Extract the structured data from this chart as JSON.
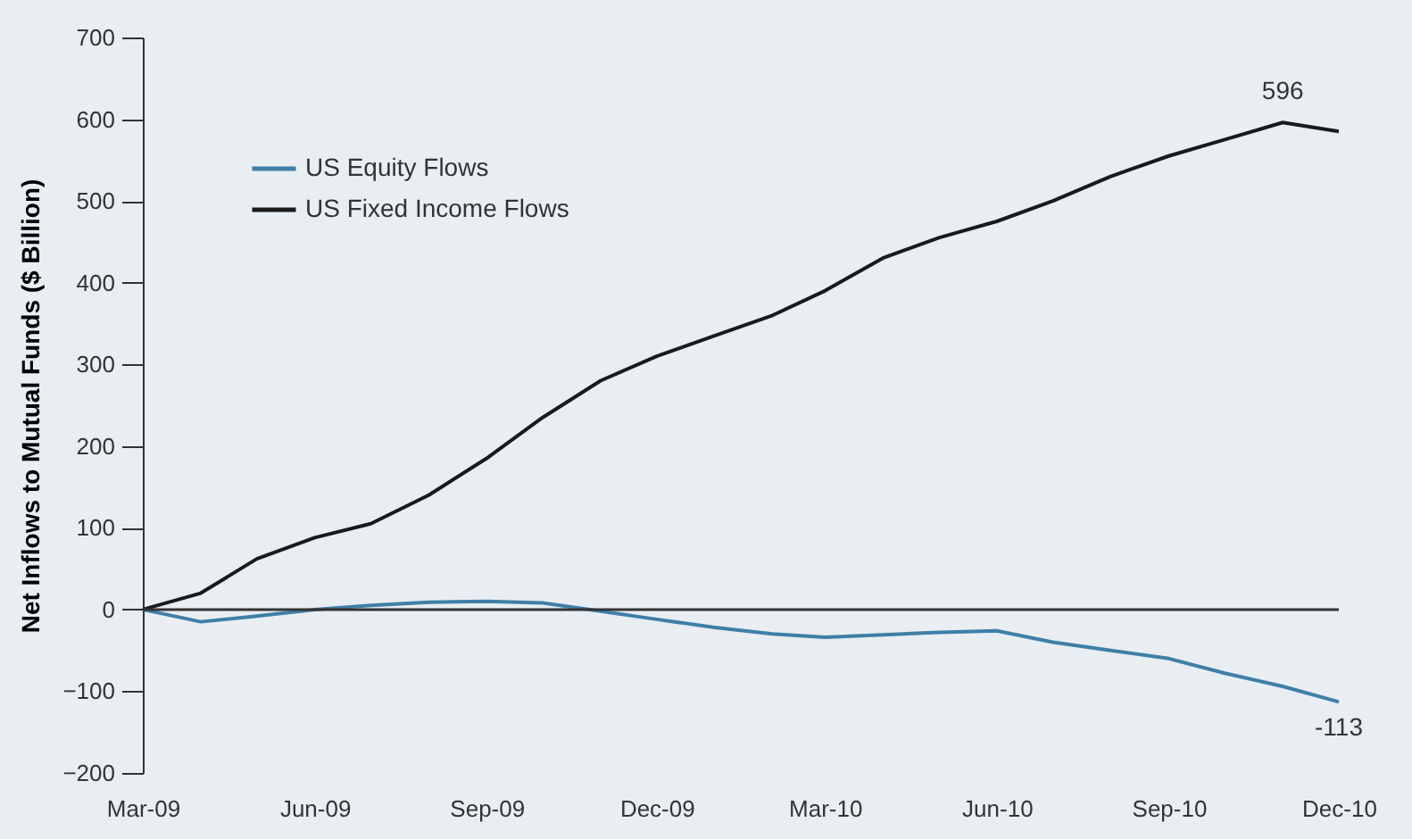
{
  "chart_data": {
    "type": "line",
    "ylabel": "Net Inflows to Mutual Funds ($ Billion)",
    "x": [
      "2009-03",
      "2009-04",
      "2009-05",
      "2009-06",
      "2009-07",
      "2009-08",
      "2009-09",
      "2009-10",
      "2009-11",
      "2009-12",
      "2010-01",
      "2010-02",
      "2010-03",
      "2010-04",
      "2010-05",
      "2010-06",
      "2010-07",
      "2010-08",
      "2010-09",
      "2010-10",
      "2010-11",
      "2010-12"
    ],
    "series": [
      {
        "name": "US Equity Flows",
        "color": "#3f7fa8",
        "values": [
          0,
          -15,
          -8,
          0,
          5,
          9,
          10,
          8,
          -2,
          -12,
          -22,
          -30,
          -34,
          -31,
          -28,
          -26,
          -40,
          -50,
          -60,
          -78,
          -94,
          -113
        ]
      },
      {
        "name": "US Fixed Income Flows",
        "color": "#1a1a1a",
        "values": [
          0,
          20,
          62,
          88,
          105,
          140,
          185,
          235,
          280,
          310,
          335,
          360,
          390,
          430,
          455,
          475,
          500,
          530,
          555,
          575,
          596,
          585
        ]
      }
    ],
    "xlim": [
      "2009-03",
      "2010-12"
    ],
    "xticks": [
      {
        "value": "2009-03",
        "label": "Mar-09"
      },
      {
        "value": "2009-06",
        "label": "Jun-09"
      },
      {
        "value": "2009-09",
        "label": "Sep-09"
      },
      {
        "value": "2009-12",
        "label": "Dec-09"
      },
      {
        "value": "2010-03",
        "label": "Mar-10"
      },
      {
        "value": "2010-06",
        "label": "Jun-10"
      },
      {
        "value": "2010-09",
        "label": "Sep-10"
      },
      {
        "value": "2010-12",
        "label": "Dec-10"
      }
    ],
    "ylim": [
      -200,
      700
    ],
    "yticks": [
      -200,
      -100,
      0,
      100,
      200,
      300,
      400,
      500,
      600,
      700
    ],
    "ref_lines": [
      {
        "axis": "y",
        "value": 0,
        "label": null,
        "color": "#333333"
      }
    ],
    "annotations": [
      {
        "text": "596",
        "x": "2010-11",
        "y": 596
      },
      {
        "text": "-113",
        "x": "2010-12",
        "y": -113
      }
    ],
    "legend": "top left",
    "grid": false,
    "marker": "none",
    "line_style": "solid"
  }
}
